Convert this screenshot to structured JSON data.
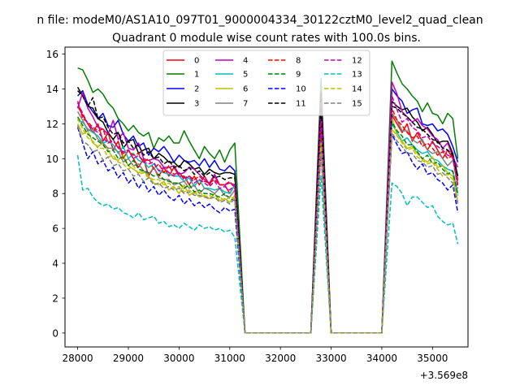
{
  "chart_data": {
    "type": "line",
    "suptitle": "n file: modeM0/AS1A10_097T01_9000004334_30122cztM0_level2_quad_clean",
    "title": "Quadrant 0 module wise count rates with 100.0s bins.",
    "xlabel": "",
    "ylabel": "",
    "x_offset_label": "+3.569e8",
    "xlim": [
      27750,
      35700
    ],
    "ylim": [
      -0.8,
      16.4
    ],
    "xticks": [
      "28000",
      "29000",
      "30000",
      "31000",
      "32000",
      "33000",
      "34000",
      "35000"
    ],
    "yticks": [
      "0",
      "2",
      "4",
      "6",
      "8",
      "10",
      "12",
      "14",
      "16"
    ],
    "legend_position": "upper center",
    "x_segments": [
      {
        "start": 28000,
        "end": 31100,
        "step": 100
      },
      {
        "start": 31300,
        "end": 32600,
        "step": 100
      },
      {
        "start": 32800,
        "end": 32800,
        "step": 100
      },
      {
        "start": 33000,
        "end": 34000,
        "step": 100
      },
      {
        "start": 34200,
        "end": 35500,
        "step": 100
      }
    ],
    "series": [
      {
        "name": "0",
        "color": "#ff0000",
        "dash": "solid",
        "values": {
          "a": [
            13.0,
            12.5,
            12.0,
            11.5,
            12.0,
            11.0,
            11.5,
            10.5,
            11.0,
            10.0,
            10.5,
            10.0,
            9.5,
            10.0,
            9.0,
            9.5,
            9.0,
            9.5,
            9.0,
            9.5,
            9.0,
            9.0,
            8.5,
            9.0,
            8.5,
            9.0,
            8.5,
            9.0,
            8.5,
            8.5,
            8.0,
            8.5
          ],
          "b": 12.5,
          "c": [
            12.5,
            12.0,
            11.5,
            12.0,
            11.0,
            11.5,
            11.0,
            10.5,
            11.0,
            10.5,
            10.0,
            10.5,
            10.0,
            8.5
          ]
        }
      },
      {
        "name": "1",
        "color": "#008000",
        "dash": "solid",
        "values": {
          "a": [
            15.2,
            15.1,
            14.5,
            13.8,
            14.0,
            13.7,
            13.2,
            12.9,
            12.3,
            12.0,
            11.6,
            11.9,
            11.5,
            11.3,
            11.5,
            10.6,
            11.2,
            11.0,
            11.3,
            10.9,
            10.9,
            11.6,
            11.0,
            10.5,
            10.0,
            10.7,
            10.3,
            10.0,
            10.5,
            9.8,
            10.5,
            10.9
          ],
          "b": 14.6,
          "c": [
            15.6,
            14.9,
            14.3,
            14.0,
            13.6,
            13.3,
            12.7,
            13.2,
            12.6,
            12.5,
            12.0,
            12.6,
            12.3,
            10.0
          ]
        }
      },
      {
        "name": "2",
        "color": "#0000ff",
        "dash": "solid",
        "values": {
          "a": [
            13.6,
            13.9,
            13.1,
            12.7,
            12.3,
            12.6,
            11.9,
            11.8,
            12.2,
            11.4,
            11.0,
            11.3,
            10.7,
            10.9,
            10.2,
            10.6,
            10.4,
            10.7,
            10.3,
            9.8,
            10.2,
            9.9,
            9.8,
            9.9,
            9.6,
            10.0,
            9.5,
            9.9,
            9.4,
            9.3,
            9.6,
            9.3
          ],
          "b": 13.4,
          "c": [
            14.0,
            13.6,
            13.3,
            12.6,
            12.8,
            12.9,
            12.0,
            11.9,
            12.0,
            11.6,
            11.7,
            11.4,
            10.7,
            9.8
          ]
        }
      },
      {
        "name": "3",
        "color": "#000000",
        "dash": "solid",
        "values": {
          "a": [
            14.1,
            13.6,
            13.0,
            12.9,
            12.3,
            12.1,
            11.5,
            11.1,
            11.5,
            10.6,
            11.0,
            11.1,
            10.3,
            10.5,
            10.6,
            10.0,
            10.3,
            10.1,
            9.8,
            9.8,
            9.5,
            9.9,
            9.7,
            9.4,
            9.5,
            9.1,
            9.4,
            9.2,
            9.1,
            9.2,
            9.2,
            9.1
          ],
          "b": 13.8,
          "c": [
            13.3,
            13.0,
            12.8,
            12.9,
            12.4,
            12.1,
            11.6,
            11.8,
            11.4,
            10.9,
            11.0,
            11.0,
            10.3,
            9.0
          ]
        }
      },
      {
        "name": "4",
        "color": "#bf00bf",
        "dash": "solid",
        "values": {
          "a": [
            12.9,
            13.8,
            12.9,
            12.4,
            11.8,
            11.7,
            11.4,
            12.2,
            11.1,
            11.5,
            10.6,
            10.5,
            10.9,
            10.0,
            9.9,
            10.0,
            9.9,
            9.5,
            9.5,
            9.6,
            9.1,
            9.2,
            9.5,
            9.4,
            9.1,
            8.8,
            8.6,
            9.1,
            8.5,
            8.5,
            8.6,
            8.5
          ],
          "b": 13.2,
          "c": [
            14.4,
            13.7,
            12.7,
            12.4,
            12.1,
            12.3,
            11.9,
            11.7,
            11.3,
            11.1,
            10.6,
            10.9,
            10.1,
            9.5
          ]
        }
      },
      {
        "name": "5",
        "color": "#00bfbf",
        "dash": "solid",
        "values": {
          "a": [
            12.2,
            12.1,
            11.7,
            11.5,
            11.3,
            10.9,
            11.0,
            10.8,
            10.3,
            10.7,
            10.0,
            10.3,
            9.9,
            9.8,
            9.5,
            9.7,
            9.3,
            9.2,
            9.1,
            9.0,
            9.0,
            8.7,
            8.9,
            8.4,
            8.8,
            8.3,
            8.3,
            8.2,
            8.3,
            8.1,
            8.0,
            8.5
          ],
          "b": 11.2,
          "c": [
            12.0,
            11.5,
            11.0,
            11.2,
            10.8,
            10.5,
            10.3,
            10.4,
            10.0,
            9.9,
            9.6,
            9.4,
            9.3,
            8.0
          ]
        }
      },
      {
        "name": "6",
        "color": "#bfbf00",
        "dash": "solid",
        "values": {
          "a": [
            12.0,
            11.4,
            11.6,
            10.9,
            10.7,
            10.9,
            10.5,
            10.0,
            9.9,
            10.2,
            9.6,
            9.4,
            9.2,
            9.3,
            9.0,
            8.6,
            8.5,
            8.7,
            8.2,
            8.4,
            8.0,
            8.5,
            7.9,
            8.1,
            7.8,
            7.9,
            7.7,
            8.0,
            7.6,
            7.7,
            7.5,
            7.9
          ],
          "b": 10.8,
          "c": [
            12.4,
            11.3,
            11.0,
            10.6,
            10.7,
            10.3,
            10.0,
            9.8,
            10.1,
            9.5,
            9.6,
            9.2,
            9.0,
            7.5
          ]
        }
      },
      {
        "name": "7",
        "color": "#808080",
        "dash": "solid",
        "values": {
          "a": [
            12.7,
            12.2,
            11.6,
            11.7,
            11.1,
            10.9,
            10.6,
            10.6,
            10.4,
            9.8,
            10.0,
            9.6,
            9.7,
            9.3,
            9.1,
            9.5,
            8.9,
            8.8,
            8.8,
            8.5,
            8.6,
            8.7,
            8.3,
            8.5,
            8.0,
            8.3,
            8.2,
            8.0,
            8.3,
            7.9,
            7.8,
            8.2
          ],
          "b": 11.5,
          "c": [
            12.6,
            12.2,
            11.6,
            11.6,
            11.1,
            10.9,
            11.1,
            10.5,
            10.3,
            10.4,
            10.0,
            9.6,
            9.9,
            8.8
          ]
        }
      },
      {
        "name": "8",
        "color": "#ff0000",
        "dash": "dashed",
        "values": {
          "a": [
            13.3,
            12.3,
            12.1,
            11.8,
            11.6,
            11.7,
            10.9,
            11.0,
            10.7,
            10.3,
            10.5,
            10.2,
            10.3,
            9.8,
            10.0,
            9.4,
            9.7,
            9.2,
            9.6,
            9.1,
            9.2,
            8.9,
            9.0,
            8.8,
            9.0,
            8.7,
            8.6,
            8.8,
            8.5,
            8.5,
            8.7,
            8.3
          ],
          "b": 11.9,
          "c": [
            12.9,
            12.2,
            11.9,
            11.5,
            11.2,
            11.3,
            10.7,
            10.9,
            10.6,
            10.2,
            10.4,
            10.0,
            10.2,
            8.7
          ]
        }
      },
      {
        "name": "9",
        "color": "#008000",
        "dash": "dashed",
        "values": {
          "a": [
            12.4,
            11.9,
            11.4,
            11.2,
            11.0,
            10.8,
            10.4,
            10.5,
            10.0,
            10.1,
            9.6,
            9.9,
            9.4,
            9.3,
            9.2,
            9.0,
            9.1,
            8.8,
            8.7,
            8.6,
            8.6,
            8.3,
            8.5,
            8.1,
            8.2,
            8.0,
            8.0,
            7.9,
            7.8,
            8.0,
            7.7,
            7.6
          ],
          "b": 11.1,
          "c": [
            12.1,
            11.6,
            11.3,
            10.8,
            10.8,
            10.4,
            10.0,
            10.2,
            9.7,
            9.8,
            9.4,
            9.1,
            9.3,
            7.9
          ]
        }
      },
      {
        "name": "10",
        "color": "#0000ff",
        "dash": "dashed",
        "values": {
          "a": [
            11.8,
            10.9,
            10.0,
            10.4,
            9.7,
            9.9,
            9.3,
            9.5,
            8.9,
            9.2,
            8.6,
            8.9,
            8.3,
            8.7,
            8.1,
            8.4,
            7.9,
            8.2,
            7.8,
            7.6,
            7.9,
            7.4,
            7.7,
            7.3,
            7.5,
            7.2,
            7.4,
            7.1,
            6.9,
            7.2,
            7.0,
            7.1
          ],
          "b": 10.6,
          "c": [
            11.4,
            10.8,
            10.3,
            10.4,
            9.8,
            9.4,
            9.7,
            9.1,
            9.2,
            8.8,
            8.6,
            8.2,
            8.5,
            6.9
          ]
        }
      },
      {
        "name": "11",
        "color": "#000000",
        "dash": "dashed",
        "values": {
          "a": [
            13.9,
            13.6,
            13.0,
            13.5,
            12.3,
            12.4,
            11.8,
            11.4,
            11.5,
            10.9,
            11.0,
            10.6,
            10.8,
            10.2,
            10.4,
            10.0,
            10.1,
            9.7,
            9.9,
            9.5,
            9.6,
            9.3,
            9.5,
            9.1,
            9.3,
            9.0,
            9.2,
            8.9,
            9.0,
            8.8,
            8.9,
            8.9
          ],
          "b": 12.9,
          "c": [
            13.0,
            12.9,
            12.6,
            12.4,
            12.1,
            11.8,
            11.7,
            11.4,
            11.1,
            11.0,
            10.6,
            10.5,
            10.2,
            8.9
          ]
        }
      },
      {
        "name": "12",
        "color": "#bf00bf",
        "dash": "dashed",
        "values": {
          "a": [
            13.2,
            12.6,
            12.0,
            11.7,
            11.5,
            11.2,
            10.9,
            11.1,
            10.6,
            10.4,
            10.5,
            10.0,
            10.2,
            9.8,
            9.7,
            9.8,
            9.3,
            9.5,
            9.2,
            9.0,
            9.2,
            8.8,
            9.0,
            8.6,
            8.8,
            8.6,
            8.4,
            8.7,
            8.3,
            8.4,
            8.2,
            8.5
          ],
          "b": 12.2,
          "c": [
            13.6,
            12.8,
            12.1,
            12.3,
            11.8,
            11.6,
            11.2,
            11.3,
            10.9,
            10.7,
            10.5,
            10.2,
            10.1,
            8.3
          ]
        }
      },
      {
        "name": "13",
        "color": "#00bfbf",
        "dash": "dashed",
        "values": {
          "a": [
            10.2,
            8.2,
            8.3,
            7.8,
            7.5,
            7.3,
            7.4,
            7.1,
            7.2,
            6.9,
            6.8,
            6.6,
            6.9,
            6.5,
            6.6,
            6.7,
            6.3,
            6.4,
            6.1,
            6.2,
            6.0,
            6.3,
            6.1,
            5.9,
            6.2,
            6.0,
            6.1,
            5.9,
            6.0,
            5.8,
            5.9,
            5.5
          ],
          "b": 9.0,
          "c": [
            8.6,
            8.4,
            8.0,
            7.3,
            7.8,
            7.8,
            7.5,
            7.2,
            7.3,
            6.7,
            6.4,
            6.2,
            6.3,
            5.1
          ]
        }
      },
      {
        "name": "14",
        "color": "#bfbf00",
        "dash": "dashed",
        "values": {
          "a": [
            12.3,
            11.7,
            11.2,
            11.0,
            10.6,
            10.6,
            10.1,
            10.2,
            9.8,
            9.7,
            9.4,
            9.6,
            9.1,
            9.2,
            8.9,
            8.8,
            8.8,
            8.5,
            8.6,
            8.3,
            8.4,
            8.1,
            8.2,
            8.0,
            8.1,
            7.8,
            7.9,
            7.7,
            7.8,
            7.6,
            7.8,
            7.7
          ],
          "b": 10.9,
          "c": [
            11.7,
            11.3,
            10.9,
            10.5,
            10.6,
            10.1,
            9.9,
            9.7,
            9.8,
            9.4,
            9.0,
            9.1,
            8.8,
            7.6
          ]
        }
      },
      {
        "name": "15",
        "color": "#808080",
        "dash": "dashed",
        "values": {
          "a": [
            11.9,
            11.0,
            10.8,
            10.4,
            10.5,
            9.9,
            10.1,
            9.6,
            9.7,
            9.3,
            9.4,
            9.0,
            9.1,
            8.7,
            8.9,
            8.5,
            8.6,
            8.3,
            8.4,
            8.2,
            8.3,
            8.0,
            8.1,
            7.9,
            7.9,
            7.8,
            7.7,
            7.8,
            7.5,
            7.6,
            7.4,
            7.7
          ],
          "b": 10.4,
          "c": [
            11.5,
            11.0,
            10.7,
            10.3,
            10.3,
            9.9,
            9.8,
            9.5,
            9.6,
            9.1,
            9.2,
            8.9,
            8.6,
            7.4
          ]
        }
      }
    ]
  }
}
